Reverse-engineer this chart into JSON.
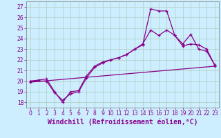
{
  "xlabel": "Windchill (Refroidissement éolien,°C)",
  "bg_color": "#cceeff",
  "line_color": "#880088",
  "grid_color": "#aaddcc",
  "xlim": [
    -0.5,
    23.5
  ],
  "ylim": [
    17.5,
    27.5
  ],
  "yticks": [
    18,
    19,
    20,
    21,
    22,
    23,
    24,
    25,
    26,
    27
  ],
  "xticks": [
    0,
    1,
    2,
    3,
    4,
    5,
    6,
    7,
    8,
    9,
    10,
    11,
    12,
    13,
    14,
    15,
    16,
    17,
    18,
    19,
    20,
    21,
    22,
    23
  ],
  "curve1_x": [
    0,
    1,
    2,
    3,
    4,
    5,
    6,
    7,
    8,
    9,
    10,
    11,
    12,
    13,
    14,
    15,
    16,
    17,
    18,
    19,
    20,
    21,
    22,
    23
  ],
  "curve1_y": [
    20.0,
    20.1,
    20.2,
    19.0,
    18.0,
    19.0,
    19.1,
    20.5,
    21.4,
    21.8,
    22.0,
    22.2,
    22.5,
    23.0,
    23.4,
    26.8,
    26.6,
    26.6,
    24.3,
    23.5,
    24.4,
    23.0,
    22.8,
    21.5
  ],
  "curve2_x": [
    0,
    2,
    3,
    4,
    5,
    6,
    7,
    8,
    9,
    10,
    11,
    12,
    13,
    14,
    15,
    16,
    17,
    18,
    19,
    20,
    21,
    22,
    23
  ],
  "curve2_y": [
    20.0,
    20.0,
    18.9,
    18.2,
    18.8,
    19.0,
    20.3,
    21.3,
    21.7,
    22.0,
    22.2,
    22.5,
    23.0,
    23.5,
    24.8,
    24.3,
    24.8,
    24.3,
    23.3,
    23.5,
    23.4,
    23.0,
    21.5
  ],
  "curve3_x": [
    0,
    23
  ],
  "curve3_y": [
    19.9,
    21.4
  ],
  "tick_fontsize": 5.5,
  "xlabel_fontsize": 7.0
}
